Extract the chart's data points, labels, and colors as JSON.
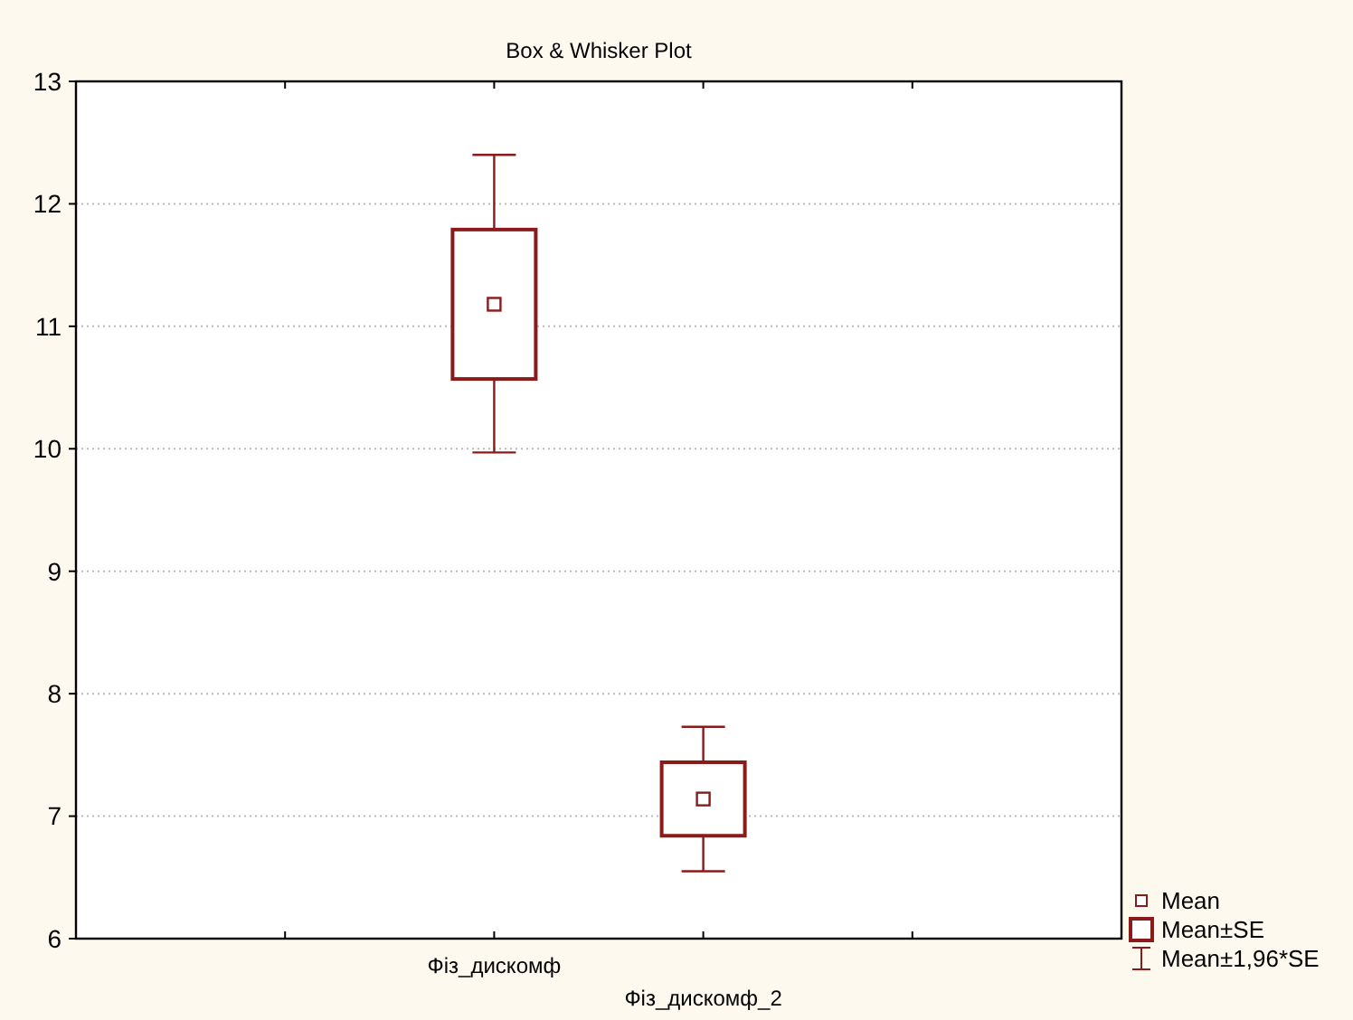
{
  "chart_data": {
    "type": "box",
    "title": "Box & Whisker Plot",
    "categories": [
      "Фіз_дискомф",
      "Фіз_дискомф_2"
    ],
    "boxes": [
      {
        "low": 9.97,
        "q1": 10.57,
        "q3": 11.79,
        "high": 12.4,
        "mean": 11.18
      },
      {
        "low": 6.55,
        "q1": 6.84,
        "q3": 7.44,
        "high": 7.73,
        "mean": 7.14
      }
    ],
    "color": "#8b1a1a",
    "ylim": [
      6,
      13
    ],
    "yticks": [
      6,
      7,
      8,
      9,
      10,
      11,
      12,
      13
    ],
    "grid": "y",
    "annotations": [
      "Mean",
      "Mean±SE",
      "Mean±1,96*SE"
    ]
  }
}
